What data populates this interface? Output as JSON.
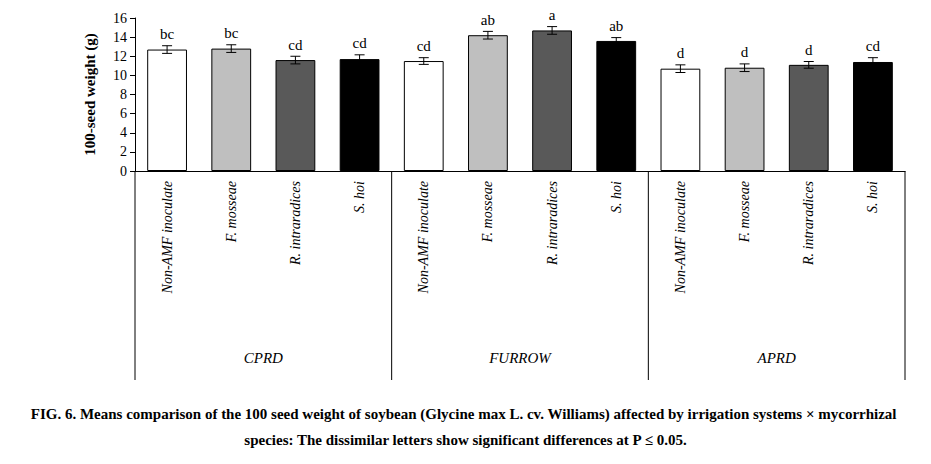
{
  "chart_data": {
    "type": "bar",
    "title": "FIG. 6. Means comparison of the 100 seed weight of soybean (Glycine max L. cv. Williams) affected by irrigation systems × mycorrhizal species: The dissimilar letters show significant differences at P ≤ 0.05.",
    "y_label": "100-seed weight (g)",
    "categories": [
      "Non-AMF inoculate",
      "F. mosseae",
      "R. intraradices",
      "S. hoi",
      "Non-AMF inoculate",
      "F. mosseae",
      "R. intraradices",
      "S. hoi",
      "Non-AMF inoculate",
      "F. mosseae",
      "R. intraradices",
      "S. hoi"
    ],
    "groups": [
      "CPRD",
      "CPRD",
      "CPRD",
      "CPRD",
      "FURROW",
      "FURROW",
      "FURROW",
      "FURROW",
      "APRD",
      "APRD",
      "APRD",
      "APRD"
    ],
    "values": [
      12.7,
      12.8,
      11.6,
      11.7,
      11.5,
      14.2,
      14.7,
      13.6,
      10.7,
      10.8,
      11.1,
      11.4
    ],
    "errors": [
      0.4,
      0.4,
      0.4,
      0.45,
      0.35,
      0.4,
      0.4,
      0.35,
      0.4,
      0.4,
      0.35,
      0.45
    ],
    "annotations": [
      "bc",
      "bc",
      "cd",
      "cd",
      "cd",
      "ab",
      "a",
      "ab",
      "d",
      "d",
      "d",
      "cd"
    ],
    "colors": [
      "#ffffff",
      "#bfbfbf",
      "#595959",
      "#000000",
      "#ffffff",
      "#bfbfbf",
      "#595959",
      "#000000",
      "#ffffff",
      "#bfbfbf",
      "#595959",
      "#000000"
    ],
    "ylim": [
      0,
      16
    ],
    "yticks": [
      0,
      2,
      4,
      6,
      8,
      10,
      12,
      14,
      16
    ],
    "grid": false
  }
}
